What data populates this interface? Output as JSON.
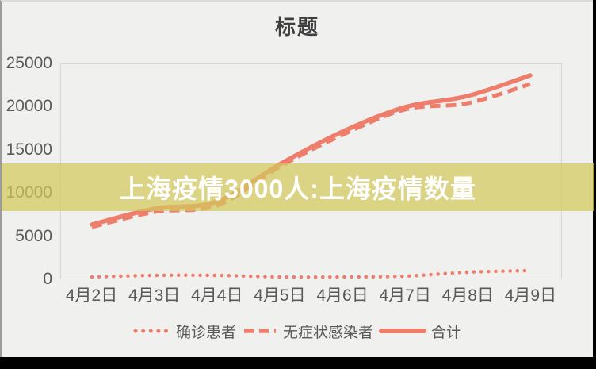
{
  "watermark": {
    "text": "上海疫情3000人:上海疫情数量",
    "band_color": "rgba(211,201,92,0.72)",
    "text_color": "#ffffff"
  },
  "colors": {
    "line": "#ee7e6b",
    "axis_label": "#595959",
    "title": "#3f3f3f",
    "plot_border": "#d6d6d6",
    "background": "#f0f0ef",
    "frame": "#000000"
  },
  "chart_data": {
    "type": "line",
    "title": "标题",
    "categories": [
      "4月2日",
      "4月3日",
      "4月4日",
      "4月5日",
      "4月6日",
      "4月7日",
      "4月8日",
      "4月9日"
    ],
    "series": [
      {
        "name": "确诊患者",
        "style": "dotted",
        "values": [
          260,
          438,
          425,
          268,
          311,
          322,
          824,
          1015
        ]
      },
      {
        "name": "无症状感染者",
        "style": "dashed",
        "values": [
          6051,
          7788,
          8581,
          13086,
          16766,
          19660,
          20398,
          22609
        ]
      },
      {
        "name": "合计",
        "style": "solid",
        "values": [
          6311,
          8226,
          9006,
          13354,
          17077,
          19982,
          21222,
          23624
        ]
      }
    ],
    "ylim": [
      0,
      25000
    ],
    "y_ticks": [
      0,
      5000,
      10000,
      15000,
      20000,
      25000
    ],
    "xlabel": "",
    "ylabel": "",
    "grid": false,
    "legend_position": "bottom",
    "line_color": "#ee7e6b"
  }
}
